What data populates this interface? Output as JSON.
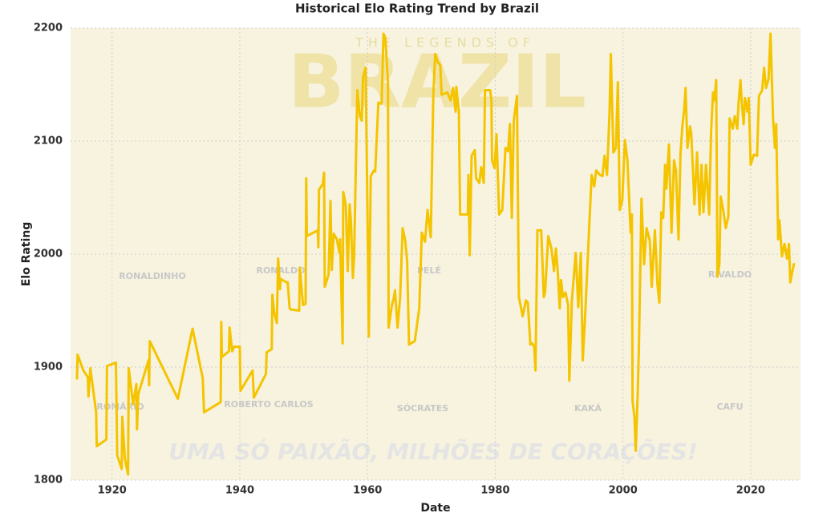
{
  "chart_data": {
    "type": "line",
    "title": "Historical Elo Rating Trend by Brazil",
    "x_label": "Date",
    "y_label": "Elo Rating",
    "xlim": [
      1913.5,
      2027.8
    ],
    "xticks": [
      1920,
      1940,
      1960,
      1980,
      2000,
      2020
    ],
    "ylim": [
      1800,
      2200
    ],
    "yticks": [
      1800,
      1900,
      2000,
      2100,
      2200
    ],
    "grid": true,
    "x": [
      1914.5,
      1914.6,
      1915.5,
      1916.2,
      1916.3,
      1916.6,
      1917.5,
      1917.6,
      1919.1,
      1919.2,
      1920.6,
      1920.8,
      1921.5,
      1921.6,
      1922.0,
      1922.5,
      1922.6,
      1923.3,
      1923.8,
      1923.9,
      1924.1,
      1925.7,
      1925.8,
      1925.9,
      1930.3,
      1932.6,
      1934.2,
      1934.4,
      1937.0,
      1937.1,
      1937.2,
      1938.3,
      1938.4,
      1938.8,
      1939.1,
      1940.0,
      1940.1,
      1942.0,
      1942.2,
      1944.1,
      1944.2,
      1945.0,
      1945.1,
      1945.4,
      1945.8,
      1946.0,
      1946.3,
      1946.4,
      1947.3,
      1947.5,
      1947.8,
      1948.0,
      1949.3,
      1949.4,
      1949.6,
      1949.9,
      1950.3,
      1950.4,
      1950.5,
      1952.2,
      1952.3,
      1952.4,
      1953.0,
      1953.2,
      1953.3,
      1953.9,
      1954.2,
      1954.4,
      1954.7,
      1955.2,
      1955.6,
      1955.7,
      1956.1,
      1956.2,
      1956.6,
      1956.9,
      1957.2,
      1957.4,
      1957.7,
      1957.9,
      1958.4,
      1958.8,
      1959.1,
      1959.3,
      1959.7,
      1960.0,
      1960.2,
      1960.5,
      1961.0,
      1961.2,
      1961.7,
      1962.2,
      1962.5,
      1962.8,
      1963.2,
      1963.3,
      1963.8,
      1964.1,
      1964.3,
      1964.7,
      1965.1,
      1965.5,
      1965.9,
      1966.2,
      1966.5,
      1967.4,
      1968.1,
      1968.5,
      1969.0,
      1969.4,
      1969.9,
      1970.3,
      1970.6,
      1971.0,
      1971.4,
      1971.6,
      1972.5,
      1973.0,
      1973.4,
      1973.8,
      1973.9,
      1974.3,
      1974.5,
      1975.7,
      1975.8,
      1976.0,
      1976.3,
      1976.8,
      1977.0,
      1977.5,
      1977.8,
      1978.2,
      1978.4,
      1979.2,
      1979.4,
      1979.5,
      1979.9,
      1980.2,
      1980.6,
      1981.1,
      1981.6,
      1982.0,
      1982.3,
      1982.6,
      1982.9,
      1983.4,
      1983.7,
      1984.3,
      1984.8,
      1985.1,
      1985.5,
      1985.8,
      1986.1,
      1986.3,
      1986.6,
      1987.2,
      1987.6,
      1987.8,
      1988.3,
      1988.8,
      1989.2,
      1989.5,
      1989.8,
      1990.1,
      1990.3,
      1990.6,
      1991.0,
      1991.4,
      1991.6,
      1992.0,
      1992.6,
      1993.0,
      1993.4,
      1993.7,
      1994.1,
      1994.8,
      1995.1,
      1995.5,
      1995.8,
      1996.4,
      1996.8,
      1997.1,
      1997.5,
      1997.9,
      1998.1,
      1998.5,
      1998.9,
      1999.2,
      1999.5,
      1999.9,
      2000.3,
      2000.7,
      2001.2,
      2001.4,
      2001.5,
      2001.8,
      2002.0,
      2002.3,
      2002.5,
      2002.9,
      2003.3,
      2003.7,
      2004.2,
      2004.5,
      2005.0,
      2005.4,
      2005.7,
      2006.0,
      2006.3,
      2006.6,
      2006.8,
      2007.2,
      2007.6,
      2008.0,
      2008.3,
      2008.7,
      2009.0,
      2009.3,
      2009.6,
      2009.8,
      2010.1,
      2010.5,
      2010.7,
      2011.2,
      2011.6,
      2012.0,
      2012.3,
      2012.6,
      2013.0,
      2013.5,
      2013.8,
      2014.1,
      2014.3,
      2014.6,
      2014.8,
      2015.1,
      2015.3,
      2015.7,
      2016.1,
      2016.5,
      2016.7,
      2017.2,
      2017.5,
      2017.9,
      2018.1,
      2018.4,
      2018.6,
      2018.9,
      2019.1,
      2019.5,
      2019.7,
      2020.0,
      2020.5,
      2021.0,
      2021.3,
      2021.8,
      2022.1,
      2022.4,
      2022.8,
      2023.1,
      2023.5,
      2023.8,
      2024.0,
      2024.3,
      2024.5,
      2024.9,
      2025.3,
      2025.7,
      2026.0,
      2026.2,
      2026.5,
      2026.8
    ],
    "series": [
      {
        "name": "Elo Rating",
        "color": "#f5c400",
        "values": [
          1889,
          1911,
          1897,
          1891,
          1874,
          1899,
          1860,
          1830,
          1836,
          1901,
          1904,
          1822,
          1810,
          1856,
          1819,
          1805,
          1899,
          1867,
          1885,
          1845,
          1876,
          1906,
          1884,
          1923,
          1872,
          1934,
          1890,
          1860,
          1869,
          1940,
          1909,
          1914,
          1935,
          1914,
          1918,
          1918,
          1879,
          1897,
          1873,
          1894,
          1913,
          1916,
          1964,
          1948,
          1939,
          1996,
          1969,
          1978,
          1975,
          1975,
          1952,
          1951,
          1950,
          1988,
          1974,
          1955,
          1956,
          2067,
          2016,
          2021,
          2006,
          2057,
          2062,
          2072,
          1971,
          1982,
          2047,
          1986,
          2018,
          2013,
          2001,
          2013,
          1921,
          2055,
          2043,
          1985,
          2044,
          2030,
          1979,
          1998,
          2145,
          2122,
          2118,
          2157,
          2165,
          2032,
          1927,
          2069,
          2074,
          2073,
          2134,
          2133,
          2195,
          2191,
          2152,
          1935,
          1954,
          1961,
          1968,
          1935,
          1961,
          2023,
          2012,
          1994,
          1920,
          1923,
          1952,
          2019,
          2011,
          2039,
          2015,
          2140,
          2177,
          2170,
          2167,
          2141,
          2143,
          2136,
          2147,
          2126,
          2148,
          2126,
          2035,
          2035,
          2070,
          1999,
          2087,
          2092,
          2067,
          2063,
          2077,
          2063,
          2145,
          2145,
          2136,
          2083,
          2076,
          2106,
          2035,
          2039,
          2094,
          2091,
          2115,
          2032,
          2118,
          2140,
          1962,
          1945,
          1959,
          1957,
          1920,
          1921,
          1918,
          1897,
          2021,
          2021,
          1962,
          1966,
          2016,
          2005,
          1985,
          2005,
          1984,
          1952,
          1977,
          1962,
          1966,
          1955,
          1888,
          1959,
          2001,
          1953,
          2001,
          1906,
          1948,
          2035,
          2070,
          2060,
          2074,
          2070,
          2069,
          2087,
          2070,
          2126,
          2177,
          2090,
          2094,
          2152,
          2039,
          2048,
          2101,
          2083,
          2019,
          2035,
          1870,
          1856,
          1826,
          1875,
          1918,
          2049,
          1991,
          2023,
          2012,
          1971,
          2021,
          1973,
          1957,
          2037,
          2032,
          2079,
          2058,
          2097,
          2019,
          2083,
          2074,
          2013,
          2088,
          2113,
          2129,
          2147,
          2094,
          2113,
          2106,
          2044,
          2090,
          2035,
          2079,
          2037,
          2079,
          2035,
          2108,
          2143,
          2136,
          2154,
          1980,
          1991,
          2051,
          2039,
          2023,
          2033,
          2120,
          2111,
          2122,
          2111,
          2134,
          2154,
          2134,
          2115,
          2138,
          2126,
          2138,
          2079,
          2088,
          2087,
          2140,
          2145,
          2165,
          2147,
          2155,
          2195,
          2120,
          2094,
          2115,
          2013,
          2030,
          1998,
          2009,
          1996,
          2009,
          1975,
          1984,
          1992
        ]
      }
    ]
  },
  "background": {
    "headline": "THE LEGENDS OF",
    "team": "BRAZIL",
    "slogan": "UMA SÓ PAIXÃO, MILHÕES DE CORAÇÕES!",
    "players": [
      "RONALDINHO",
      "RONALDO",
      "PELÉ",
      "RIVALDO",
      "ROMÁRIO",
      "ROBERTO CARLOS",
      "SÓCRATES",
      "KAKÁ",
      "CAFU"
    ]
  }
}
